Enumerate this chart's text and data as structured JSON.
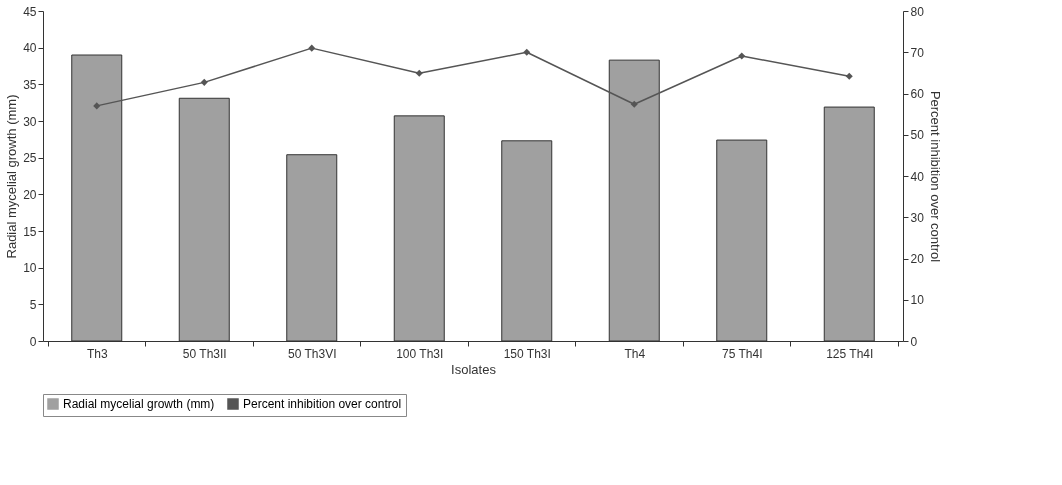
{
  "chart_data": {
    "type": "bar",
    "xlabel": "Isolates",
    "ylabel": "Radial mycelial growth (mm)",
    "y2label": "Percent inhibition over control",
    "categories": [
      "Th3",
      "50 Th3II",
      "50 Th3VI",
      "100 Th3I",
      "150 Th3I",
      "Th4",
      "75 Th4I",
      "125 Th4I"
    ],
    "series": [
      {
        "name": "Radial mycelial growth (mm)",
        "color": "#a0a0a0",
        "values": [
          39.0,
          33.1,
          25.4,
          30.7,
          27.3,
          38.3,
          27.4,
          31.9
        ]
      },
      {
        "name": "Percent inhibition over control",
        "type": "line",
        "axis": "y2",
        "color": "#555555",
        "values": [
          57,
          62.7,
          71.0,
          64.9,
          70.0,
          57.4,
          69.1,
          64.2
        ]
      }
    ],
    "ylim": [
      0,
      45
    ],
    "yticks": [
      0,
      5,
      10,
      15,
      20,
      25,
      30,
      35,
      40,
      45
    ],
    "y2lim": [
      0,
      80
    ],
    "y2ticks": [
      0,
      10,
      20,
      30,
      40,
      50,
      60,
      70,
      80
    ],
    "legend": "bottom",
    "marker": "diamond",
    "line_style": "solid",
    "grid": false
  }
}
